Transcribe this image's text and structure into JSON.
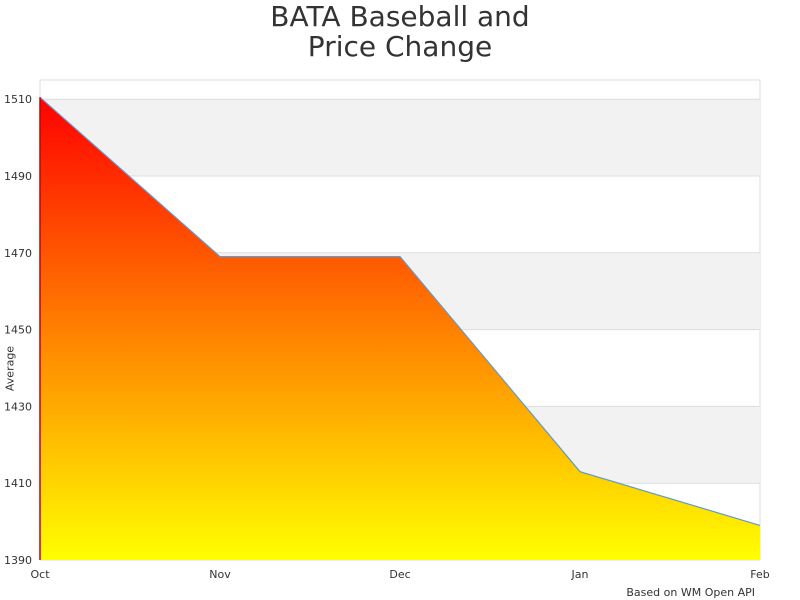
{
  "chart_data": {
    "type": "area",
    "title_lines": [
      "BATA Baseball and",
      "Price Change"
    ],
    "xlabel": "",
    "ylabel": "Average",
    "categories": [
      "Oct",
      "Nov",
      "Dec",
      "Jan",
      "Feb"
    ],
    "values": [
      1510.5,
      1469,
      1469,
      1413,
      1399
    ],
    "ylim": [
      1390,
      1515
    ],
    "yticks": [
      1390,
      1410,
      1430,
      1450,
      1470,
      1490,
      1510
    ],
    "grid": true,
    "fill_gradient": [
      "#ff0000",
      "#ffff00"
    ],
    "line_color": "#5b9bd5",
    "band_color": "#f2f2f2"
  },
  "credit": "Based on WM Open API"
}
